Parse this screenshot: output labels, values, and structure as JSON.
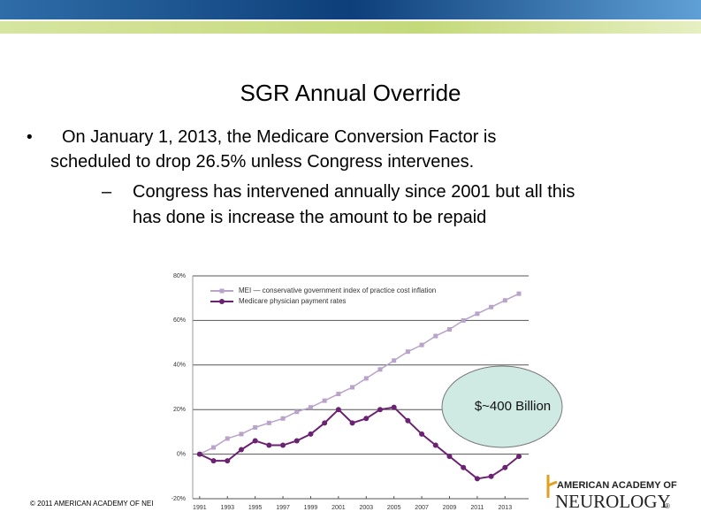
{
  "slide": {
    "title": "SGR Annual Override",
    "bullet": "•",
    "bullet_text_1": "On January 1, 2013, the Medicare Conversion Factor is",
    "bullet_text_2": "scheduled to drop 26.5% unless Congress intervenes.",
    "dash": "–",
    "sub_text_1": "Congress has intervened annually since 2001 but all this",
    "sub_text_2": "has done is increase the amount to be repaid",
    "footer": "© 2011 AMERICAN ACADEMY OF NEI",
    "logo_line_1": "AMERICAN ACADEMY OF",
    "logo_line_2": "NEUROLOGY",
    "logo_mark": "®"
  },
  "chart_data": {
    "type": "line",
    "x": [
      1991,
      1992,
      1993,
      1994,
      1995,
      1996,
      1997,
      1998,
      1999,
      2000,
      2001,
      2002,
      2003,
      2004,
      2005,
      2006,
      2007,
      2008,
      2009,
      2010,
      2011,
      2012,
      2013,
      2014
    ],
    "series": [
      {
        "name": "MEI — conservative government index of practice cost inflation",
        "color": "#b9a3c9",
        "values": [
          0,
          3,
          7,
          9,
          12,
          14,
          16,
          19,
          21,
          24,
          27,
          30,
          34,
          38,
          42,
          46,
          49,
          53,
          56,
          60,
          63,
          66,
          69,
          72
        ]
      },
      {
        "name": "Medicare physician payment rates",
        "color": "#6b2272",
        "values": [
          0,
          -3,
          -3,
          2,
          6,
          4,
          4,
          6,
          9,
          14,
          20,
          14,
          16,
          20,
          21,
          15,
          9,
          4,
          -1,
          -6,
          -11,
          -10,
          -6,
          -1
        ]
      }
    ],
    "xlim": [
      1990.5,
      2014.7
    ],
    "xticks": [
      1991,
      1993,
      1995,
      1997,
      1999,
      2001,
      2003,
      2005,
      2007,
      2009,
      2011,
      2013
    ],
    "ylim": [
      -20,
      80
    ],
    "yticks": [
      {
        "value": -20,
        "label": "-20%"
      },
      {
        "value": 0,
        "label": "0%"
      },
      {
        "value": 20,
        "label": "20%"
      },
      {
        "value": 40,
        "label": "40%"
      },
      {
        "value": 60,
        "label": "60%"
      },
      {
        "value": 80,
        "label": "80%"
      }
    ],
    "grid": true,
    "annotation": "$~400 Billion"
  }
}
